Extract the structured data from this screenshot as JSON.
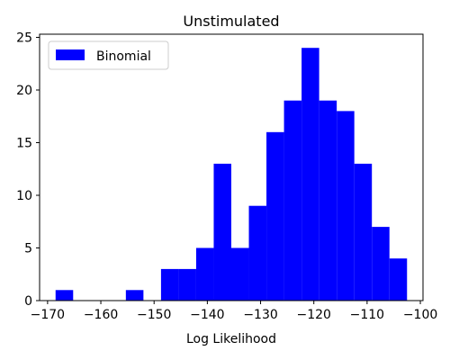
{
  "chart_data": {
    "type": "bar",
    "title": "Unstimulated",
    "xlabel": "Log Likelihood",
    "ylabel": "",
    "xlim": [
      -171.5,
      -99.5
    ],
    "ylim": [
      0,
      25.3
    ],
    "bin_width": 3.3,
    "series": [
      {
        "name": "Binomial",
        "color": "#0000ff",
        "bins": [
          {
            "x0": -168.5,
            "x1": -165.2,
            "count": 1
          },
          {
            "x0": -165.2,
            "x1": -161.9,
            "count": 0
          },
          {
            "x0": -161.9,
            "x1": -158.6,
            "count": 0
          },
          {
            "x0": -158.6,
            "x1": -155.3,
            "count": 0
          },
          {
            "x0": -155.3,
            "x1": -152.0,
            "count": 1
          },
          {
            "x0": -152.0,
            "x1": -148.7,
            "count": 0
          },
          {
            "x0": -148.7,
            "x1": -145.4,
            "count": 3
          },
          {
            "x0": -145.4,
            "x1": -142.1,
            "count": 3
          },
          {
            "x0": -142.1,
            "x1": -138.8,
            "count": 5
          },
          {
            "x0": -138.8,
            "x1": -135.5,
            "count": 13
          },
          {
            "x0": -135.5,
            "x1": -132.2,
            "count": 5
          },
          {
            "x0": -132.2,
            "x1": -128.9,
            "count": 9
          },
          {
            "x0": -128.9,
            "x1": -125.6,
            "count": 16
          },
          {
            "x0": -125.6,
            "x1": -122.3,
            "count": 19
          },
          {
            "x0": -122.3,
            "x1": -119.0,
            "count": 24
          },
          {
            "x0": -119.0,
            "x1": -115.7,
            "count": 19
          },
          {
            "x0": -115.7,
            "x1": -112.4,
            "count": 18
          },
          {
            "x0": -112.4,
            "x1": -109.1,
            "count": 13
          },
          {
            "x0": -109.1,
            "x1": -105.8,
            "count": 7
          },
          {
            "x0": -105.8,
            "x1": -102.5,
            "count": 4
          }
        ]
      }
    ],
    "xticks": [
      -170,
      -160,
      -150,
      -140,
      -130,
      -120,
      -110,
      -100
    ],
    "xtick_labels": [
      "−170",
      "−160",
      "−150",
      "−140",
      "−130",
      "−120",
      "−110",
      "−100"
    ],
    "yticks": [
      0,
      5,
      10,
      15,
      20,
      25
    ],
    "ytick_labels": [
      "0",
      "5",
      "10",
      "15",
      "20",
      "25"
    ],
    "grid": false,
    "legend_position": "top-left"
  }
}
